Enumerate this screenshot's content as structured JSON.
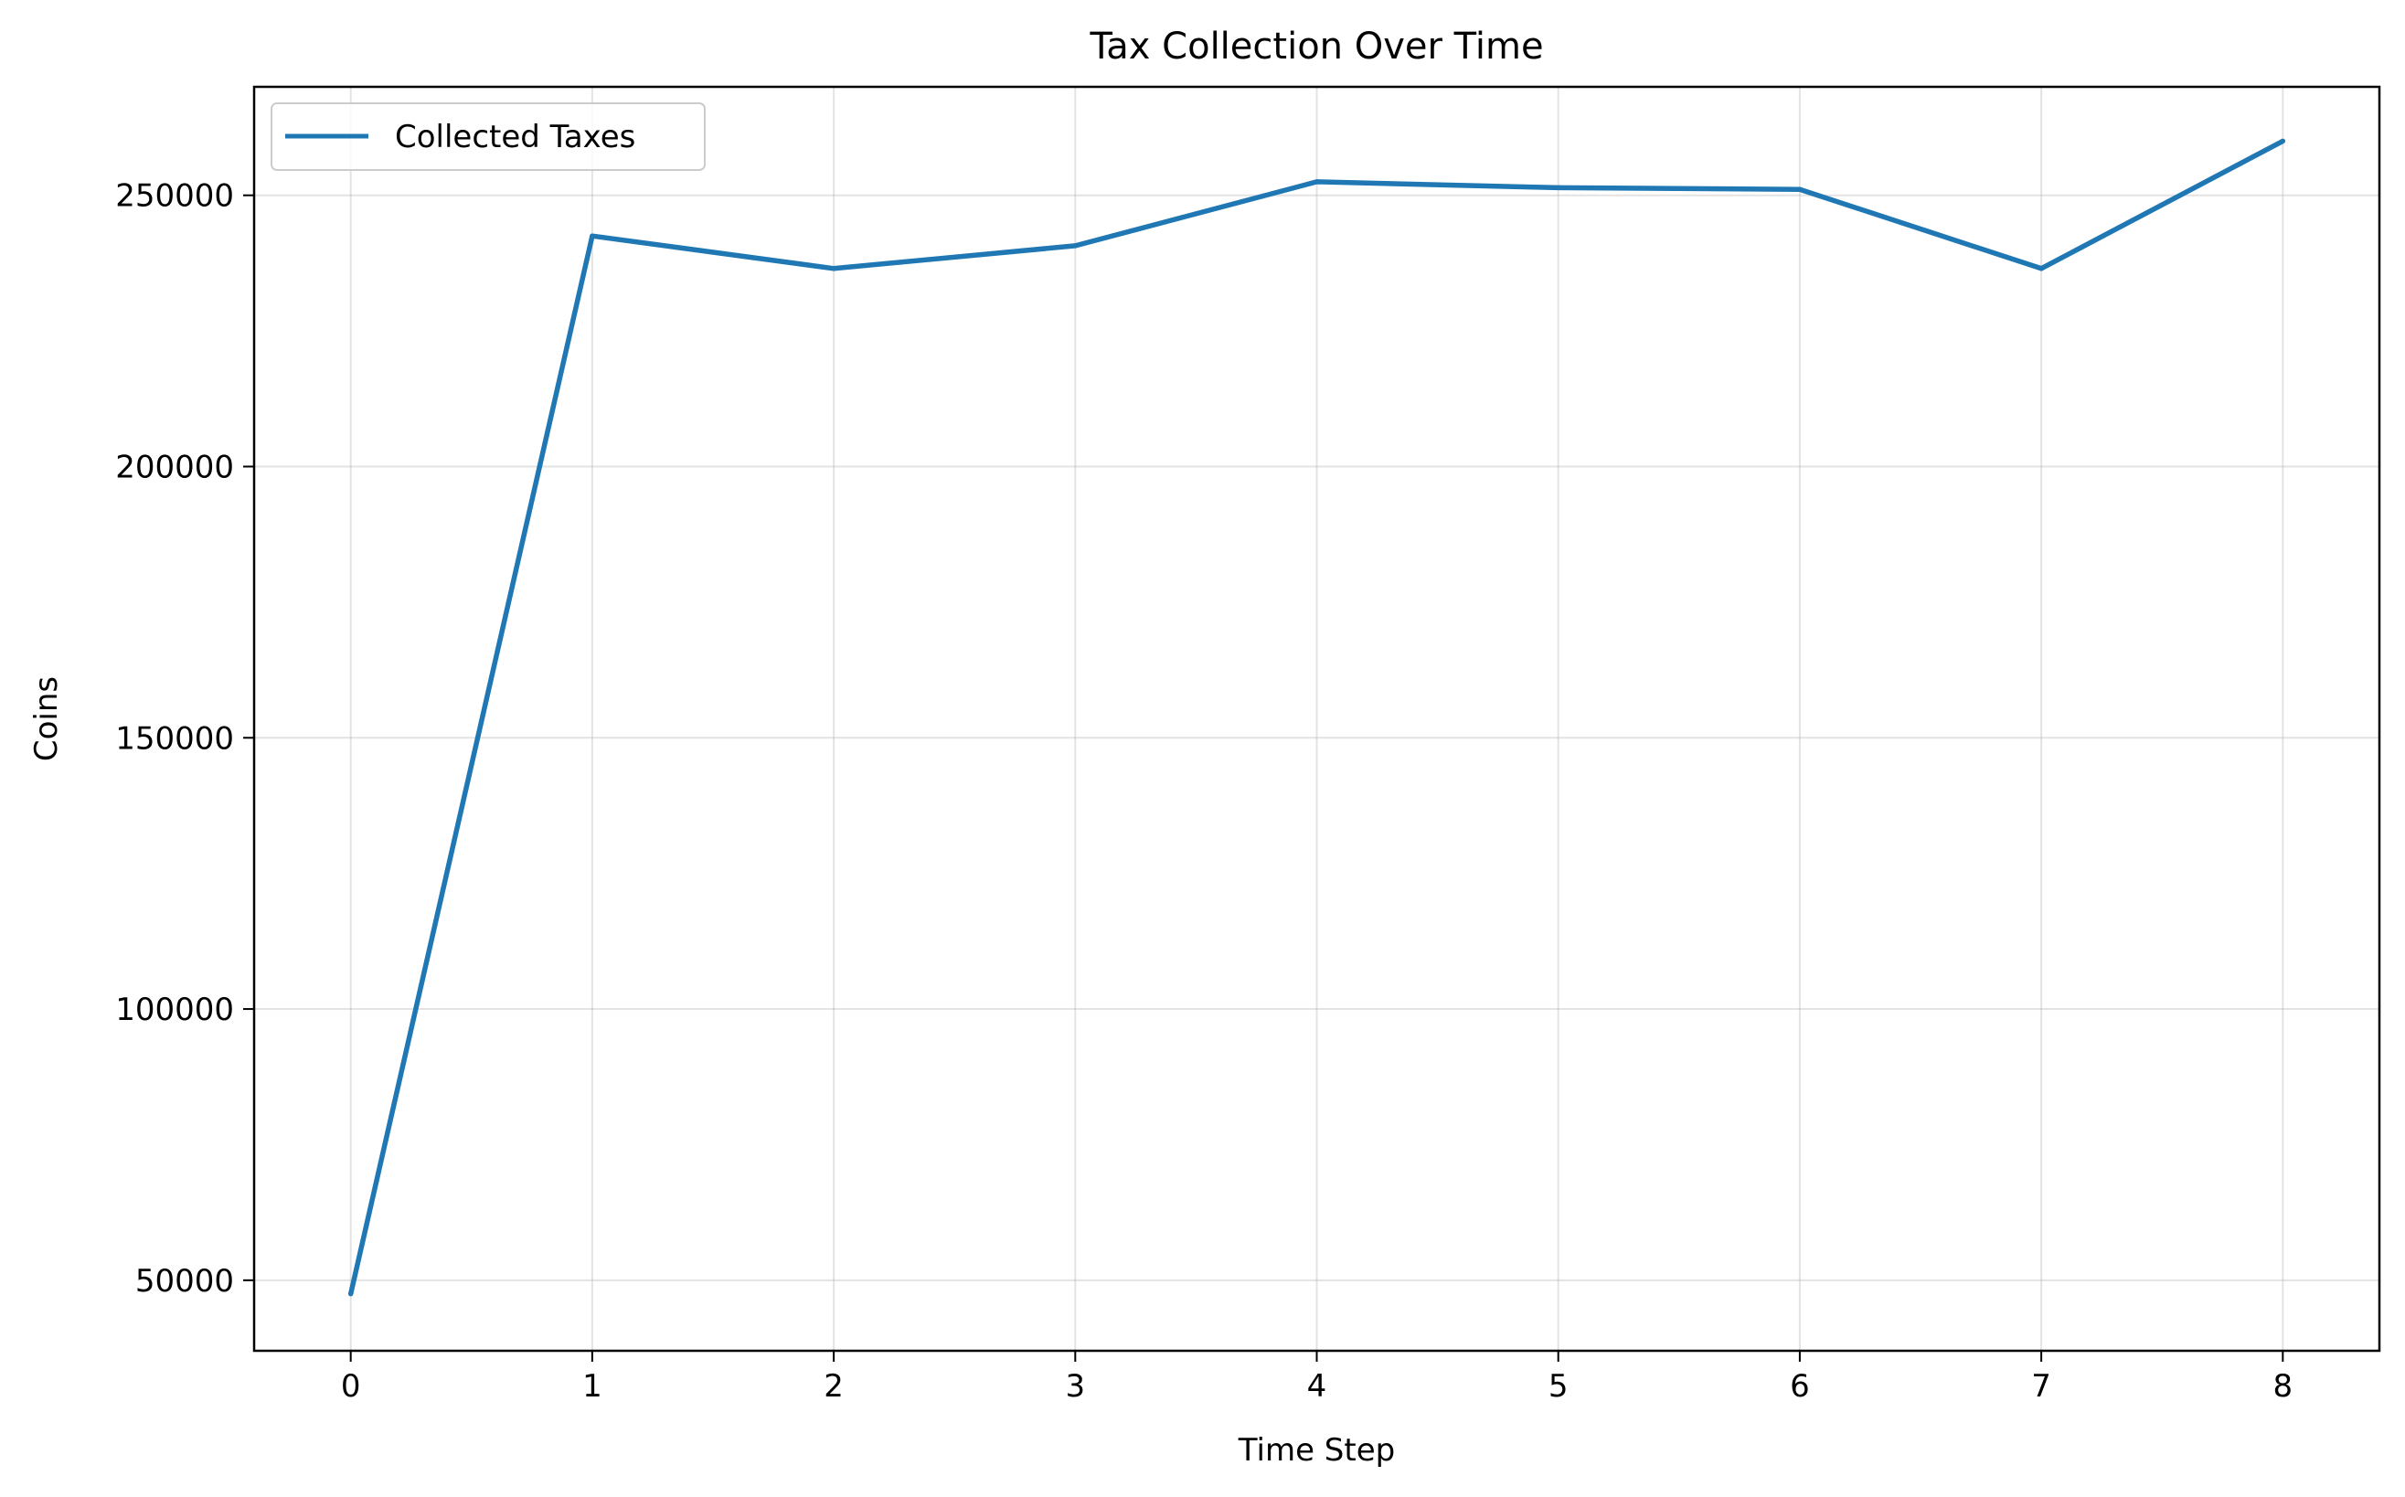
{
  "chart_data": {
    "type": "line",
    "title": "Tax Collection Over Time",
    "xlabel": "Time Step",
    "ylabel": "Coins",
    "x": [
      0,
      1,
      2,
      3,
      4,
      5,
      6,
      7,
      8
    ],
    "xticks": [
      0,
      1,
      2,
      3,
      4,
      5,
      6,
      7,
      8
    ],
    "xlim": [
      -0.4,
      8.4
    ],
    "yticks": [
      50000,
      100000,
      150000,
      200000,
      250000
    ],
    "ylim": [
      37000,
      270000
    ],
    "grid": true,
    "legend_position": "top-left",
    "series": [
      {
        "name": "Collected Taxes",
        "color": "#1f77b4",
        "values": [
          47500,
          242500,
          236500,
          240700,
          252500,
          251400,
          251100,
          236500,
          260000
        ]
      }
    ]
  }
}
